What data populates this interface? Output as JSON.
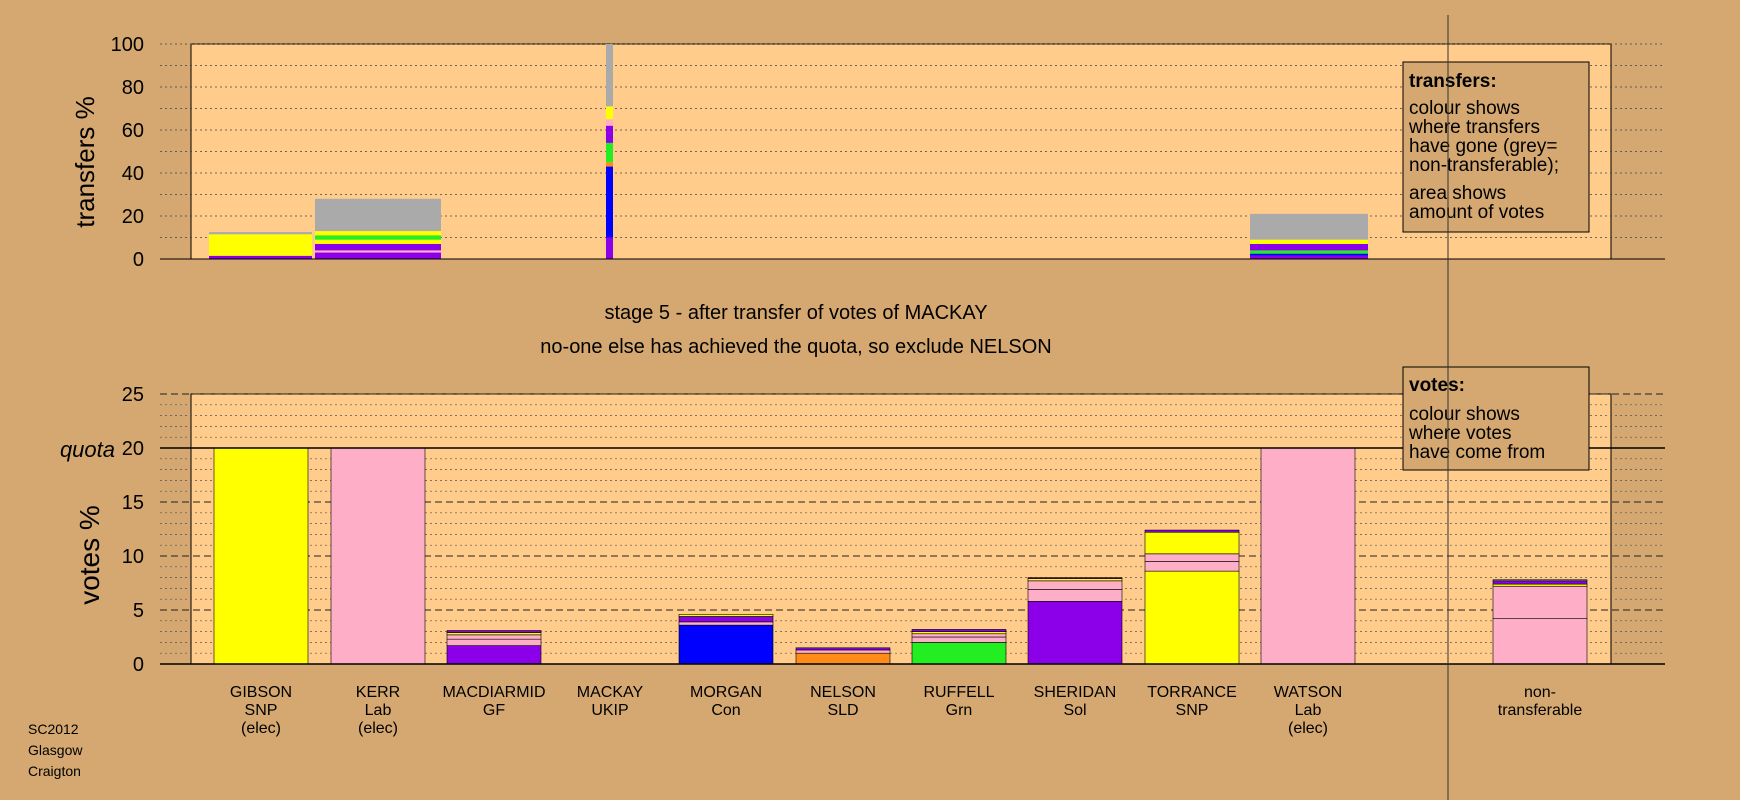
{
  "chart_data": {
    "type": "bar",
    "stage_title": "stage 5 - after transfer of votes of MACKAY",
    "stage_subtitle": "no-one else has achieved the quota, so exclude NELSON",
    "footer": [
      "SC2012",
      "Glasgow",
      "Craigton"
    ],
    "colors": {
      "SNP": "#ffff00",
      "Lab": "#ffaec8",
      "GF": "#8b00e8",
      "UKIP": "#b020b0",
      "Con": "#0000ff",
      "SLD": "#ff8c1a",
      "Grn": "#22ee22",
      "Sol": "#8b00e8",
      "nontransferable": "#aaaaaa",
      "background": "#d4a870",
      "panel": "#ffcc8c"
    },
    "candidates": [
      {
        "name": "GIBSON",
        "party": "SNP",
        "status": "(elec)"
      },
      {
        "name": "KERR",
        "party": "Lab",
        "status": "(elec)"
      },
      {
        "name": "MACDIARMID",
        "party": "GF",
        "status": ""
      },
      {
        "name": "MACKAY",
        "party": "UKIP",
        "status": ""
      },
      {
        "name": "MORGAN",
        "party": "Con",
        "status": ""
      },
      {
        "name": "NELSON",
        "party": "SLD",
        "status": ""
      },
      {
        "name": "RUFFELL",
        "party": "Grn",
        "status": ""
      },
      {
        "name": "SHERIDAN",
        "party": "Sol",
        "status": ""
      },
      {
        "name": "TORRANCE",
        "party": "SNP",
        "status": ""
      },
      {
        "name": "WATSON",
        "party": "Lab",
        "status": "(elec)"
      },
      {
        "name": "non-",
        "party": "transferable",
        "status": ""
      }
    ],
    "transfers_chart": {
      "ylabel": "transfers %",
      "ylim": [
        0,
        100
      ],
      "ticks": [
        0,
        20,
        40,
        60,
        80,
        100
      ],
      "legend_title": "transfers:",
      "legend_lines": [
        "colour shows",
        "where transfers",
        "have gone (grey=",
        "non-transferable);",
        "area shows",
        "amount of votes"
      ],
      "bars": [
        {
          "stage_index": 0,
          "segments": [
            {
              "color": "#8b00e8",
              "value": 1.5
            },
            {
              "color": "#ffff00",
              "value": 10
            },
            {
              "color": "#aaaaaa",
              "value": 1
            }
          ]
        },
        {
          "stage_index": 1,
          "segments": [
            {
              "color": "#8b00e8",
              "value": 3
            },
            {
              "color": "#ffaec8",
              "value": 1
            },
            {
              "color": "#8b00e8",
              "value": 3
            },
            {
              "color": "#ffff00",
              "value": 2
            },
            {
              "color": "#22ee22",
              "value": 2
            },
            {
              "color": "#ffff00",
              "value": 2
            },
            {
              "color": "#aaaaaa",
              "value": 15
            }
          ]
        },
        {
          "stage_index": 3,
          "segments": [
            {
              "color": "#8b00e8",
              "value": 10
            },
            {
              "color": "#0000ff",
              "value": 33
            },
            {
              "color": "#ff8c1a",
              "value": 2
            },
            {
              "color": "#22ee22",
              "value": 9
            },
            {
              "color": "#8b00e8",
              "value": 8
            },
            {
              "color": "#ffaec8",
              "value": 3
            },
            {
              "color": "#ffff00",
              "value": 6
            },
            {
              "color": "#aaaaaa",
              "value": 29
            }
          ]
        },
        {
          "stage_index": 9,
          "segments": [
            {
              "color": "#8b00e8",
              "value": 1.5
            },
            {
              "color": "#0000ff",
              "value": 1
            },
            {
              "color": "#22ee22",
              "value": 1.5
            },
            {
              "color": "#8b00e8",
              "value": 3
            },
            {
              "color": "#ffff00",
              "value": 2
            },
            {
              "color": "#aaaaaa",
              "value": 12
            }
          ]
        }
      ]
    },
    "votes_chart": {
      "ylabel": "votes %",
      "ylim": [
        0,
        25
      ],
      "ticks": [
        0,
        5,
        10,
        15,
        20,
        25
      ],
      "quota": 20,
      "quota_label": "quota",
      "legend_title": "votes:",
      "legend_lines": [
        "colour shows",
        "where votes",
        "have come from"
      ],
      "bars": [
        {
          "candidate": "GIBSON",
          "segments": [
            {
              "color": "#ffff00",
              "value": 20
            }
          ]
        },
        {
          "candidate": "KERR",
          "segments": [
            {
              "color": "#ffaec8",
              "value": 20
            }
          ]
        },
        {
          "candidate": "MACDIARMID",
          "segments": [
            {
              "color": "#8b00e8",
              "value": 1.7
            },
            {
              "color": "#ffaec8",
              "value": 0.6
            },
            {
              "color": "#ffaec8",
              "value": 0.4
            },
            {
              "color": "#ffff00",
              "value": 0.2
            },
            {
              "color": "#8b00e8",
              "value": 0.2
            }
          ]
        },
        {
          "candidate": "MACKAY",
          "segments": []
        },
        {
          "candidate": "MORGAN",
          "segments": [
            {
              "color": "#0000ff",
              "value": 3.6
            },
            {
              "color": "#ffaec8",
              "value": 0.3
            },
            {
              "color": "#8b00e8",
              "value": 0.5
            },
            {
              "color": "#ffff00",
              "value": 0.2
            }
          ]
        },
        {
          "candidate": "NELSON",
          "segments": [
            {
              "color": "#ff8c1a",
              "value": 1.0
            },
            {
              "color": "#ffaec8",
              "value": 0.3
            },
            {
              "color": "#8b00e8",
              "value": 0.2
            }
          ]
        },
        {
          "candidate": "RUFFELL",
          "segments": [
            {
              "color": "#22ee22",
              "value": 2.0
            },
            {
              "color": "#ffaec8",
              "value": 0.5
            },
            {
              "color": "#ffaec8",
              "value": 0.3
            },
            {
              "color": "#ffff00",
              "value": 0.2
            },
            {
              "color": "#8b00e8",
              "value": 0.2
            }
          ]
        },
        {
          "candidate": "SHERIDAN",
          "segments": [
            {
              "color": "#8b00e8",
              "value": 5.8
            },
            {
              "color": "#ffaec8",
              "value": 1.1
            },
            {
              "color": "#ffaec8",
              "value": 0.8
            },
            {
              "color": "#ffff00",
              "value": 0.2
            },
            {
              "color": "#8b00e8",
              "value": 0.1
            }
          ]
        },
        {
          "candidate": "TORRANCE",
          "segments": [
            {
              "color": "#ffff00",
              "value": 8.6
            },
            {
              "color": "#ffaec8",
              "value": 0.9
            },
            {
              "color": "#ffaec8",
              "value": 0.7
            },
            {
              "color": "#ffff00",
              "value": 2.0
            },
            {
              "color": "#8b00e8",
              "value": 0.2
            }
          ]
        },
        {
          "candidate": "WATSON",
          "segments": [
            {
              "color": "#ffaec8",
              "value": 20
            }
          ]
        },
        {
          "candidate": "non-transferable",
          "segments": [
            {
              "color": "#ffaec8",
              "value": 4.2
            },
            {
              "color": "#ffaec8",
              "value": 3.0
            },
            {
              "color": "#ffff00",
              "value": 0.2
            },
            {
              "color": "#8b00e8",
              "value": 0.3
            },
            {
              "color": "#aaaaaa",
              "value": 0.1
            }
          ]
        }
      ]
    }
  }
}
